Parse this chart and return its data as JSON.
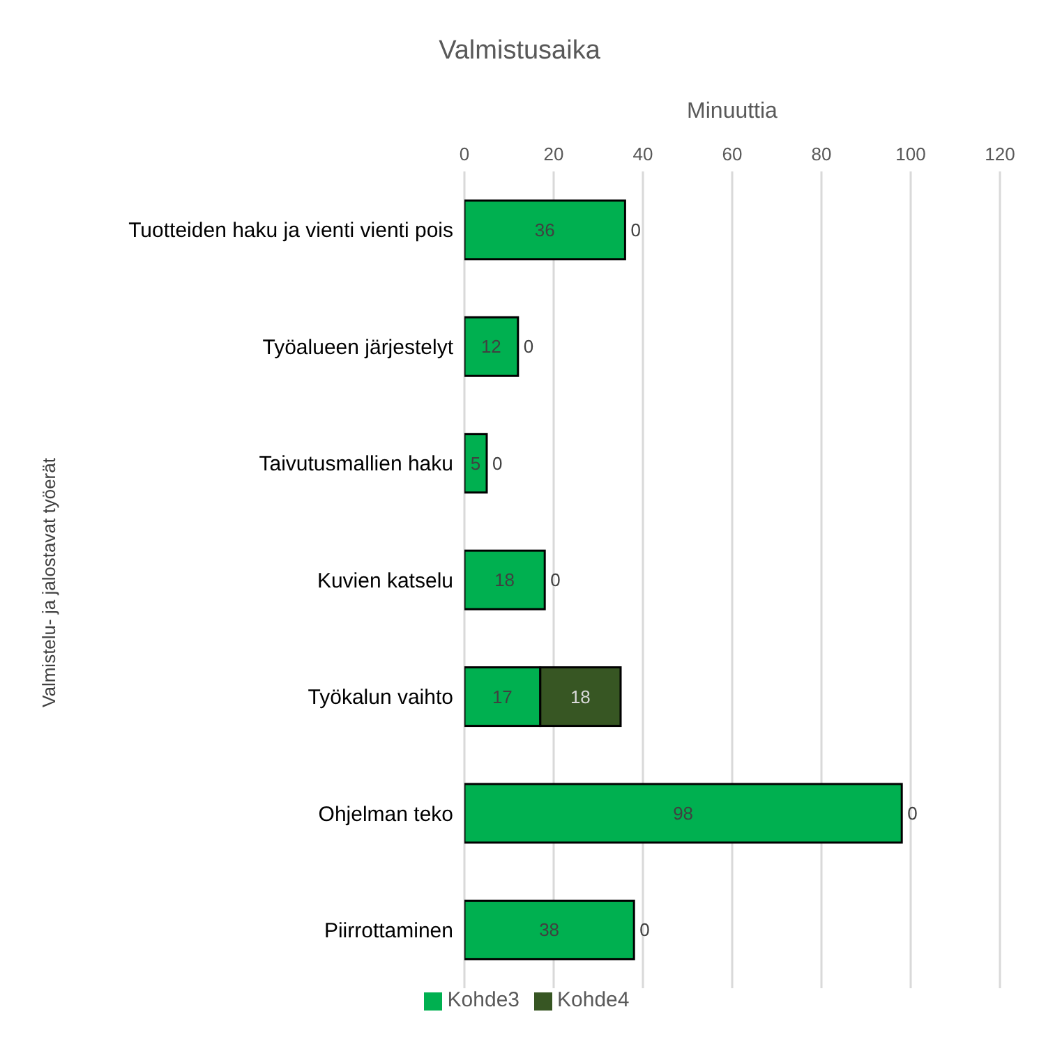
{
  "chart_data": {
    "type": "bar",
    "orientation": "horizontal",
    "stacked": true,
    "title": "Valmistusaika",
    "xlabel": "Minuuttia",
    "ylabel": "Valmistelu- ja jalostavat työerät",
    "categories": [
      "Tuotteiden haku ja vienti vienti pois",
      "Työalueen järjestelyt",
      "Taivutusmallien haku",
      "Kuvien katselu",
      "Työkalun vaihto",
      "Ohjelman teko",
      "Piirrottaminen"
    ],
    "series": [
      {
        "name": "Kohde3",
        "color": "#00b050",
        "values": [
          36,
          12,
          5,
          18,
          17,
          98,
          38
        ]
      },
      {
        "name": "Kohde4",
        "color": "#375623",
        "values": [
          0,
          0,
          0,
          0,
          18,
          0,
          0
        ]
      }
    ],
    "xlim": [
      0,
      120
    ],
    "xticks": [
      0,
      20,
      40,
      60,
      80,
      100,
      120
    ],
    "grid": "x",
    "legend": "bottom",
    "data_labels": true
  }
}
